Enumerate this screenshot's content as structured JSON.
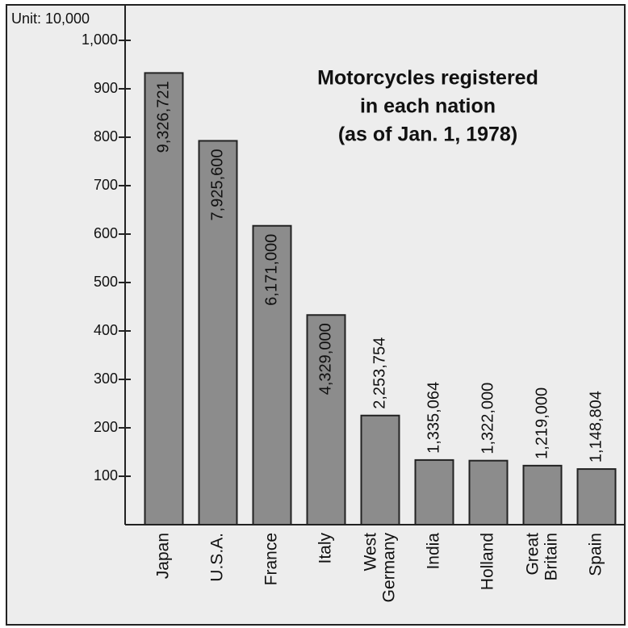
{
  "chart_data": {
    "type": "bar",
    "title": [
      "Motorcycles registered",
      "in each nation",
      "(as of Jan. 1, 1978)"
    ],
    "unit_label": "Unit: 10,000",
    "categories": [
      "Japan",
      "U.S.A.",
      "France",
      "Italy",
      "West Germany",
      "India",
      "Holland",
      "Great Britain",
      "Spain"
    ],
    "values": [
      932.6721,
      792.56,
      617.1,
      432.9,
      225.3754,
      133.5064,
      132.2,
      121.9,
      114.8804
    ],
    "value_labels": [
      "9,326,721",
      "7,925,600",
      "6,171,000",
      "4,329,000",
      "2,253,754",
      "1,335,064",
      "1,322,000",
      "1,219,000",
      "1,148,804"
    ],
    "color": "#8c8c8c",
    "ylim": [
      0,
      1065
    ],
    "yticks": [
      100,
      200,
      300,
      400,
      500,
      600,
      700,
      800,
      900,
      {
        "value": 1000,
        "label": "1,000"
      }
    ]
  }
}
